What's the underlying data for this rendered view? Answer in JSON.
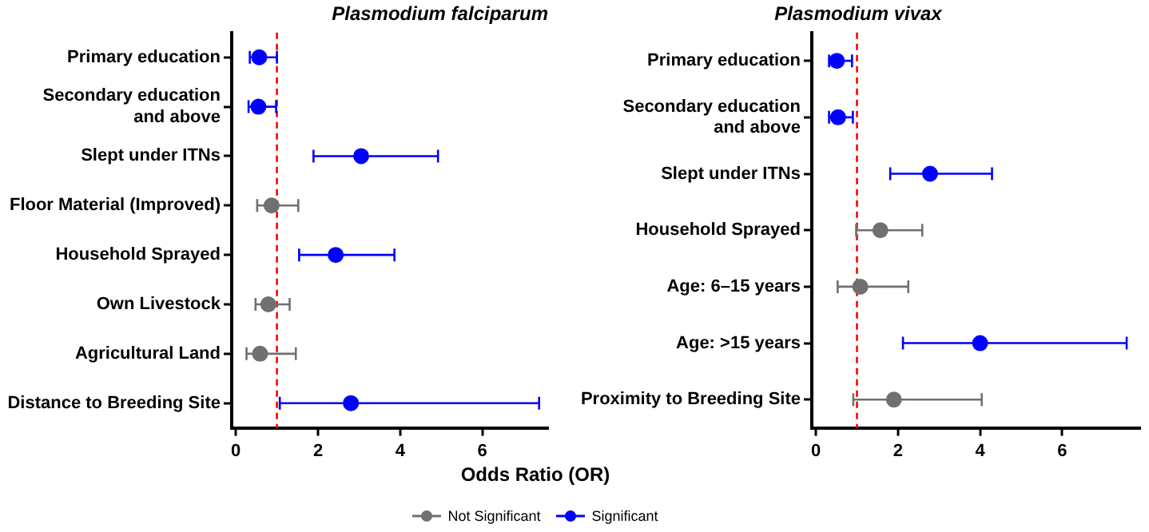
{
  "chart_data": [
    {
      "type": "scatter",
      "orientation": "horizontal",
      "title": "Plasmodium falciparum",
      "xlabel": "Odds Ratio (OR)",
      "legend": "bottom",
      "marker": "circle",
      "categories": [
        "Primary education",
        "Secondary education\nand above",
        "Slept under ITNs",
        "Floor Material (Improved)",
        "Household Sprayed",
        "Own Livestock",
        "Agricultural Land",
        "Distance to Breeding Site"
      ],
      "xlim": [
        -0.1,
        7.6
      ],
      "xticks": [
        0,
        2,
        4,
        6
      ],
      "ref_lines": [
        {
          "axis": "x",
          "value": 1,
          "color": "#ff0000",
          "line_style": "dashed"
        }
      ],
      "series": [
        {
          "name": "Not Significant",
          "color": "#707070",
          "values": [
            null,
            null,
            null,
            0.87,
            null,
            0.79,
            0.59,
            null
          ],
          "errors": [
            null,
            null,
            null,
            [
              0.52,
              1.52
            ],
            null,
            [
              0.48,
              1.31
            ],
            [
              0.26,
              1.46
            ],
            null
          ]
        },
        {
          "name": "Significant",
          "color": "#0000ff",
          "values": [
            0.57,
            0.55,
            3.05,
            null,
            2.43,
            null,
            null,
            2.8
          ],
          "errors": [
            [
              0.34,
              1.0
            ],
            [
              0.31,
              0.98
            ],
            [
              1.89,
              4.92
            ],
            null,
            [
              1.54,
              3.86
            ],
            null,
            null,
            [
              1.07,
              7.38
            ]
          ]
        }
      ]
    },
    {
      "type": "scatter",
      "orientation": "horizontal",
      "title": "Plasmodium vivax",
      "marker": "circle",
      "categories": [
        "Primary education",
        "Secondary education\nand above",
        "Slept under ITNs",
        "Household Sprayed",
        "Age: 6–15 years",
        "Age: >15 years",
        "Proximity to Breeding Site"
      ],
      "xlim": [
        -0.1,
        7.9
      ],
      "xticks": [
        0,
        2,
        4,
        6
      ],
      "ref_lines": [
        {
          "axis": "x",
          "value": 1,
          "color": "#ff0000",
          "line_style": "dashed"
        }
      ],
      "series": [
        {
          "color": "#707070",
          "values": [
            null,
            null,
            null,
            1.57,
            1.08,
            null,
            1.9
          ],
          "errors": [
            null,
            null,
            null,
            [
              0.98,
              2.59
            ],
            [
              0.53,
              2.25
            ],
            null,
            [
              0.91,
              4.04
            ]
          ]
        },
        {
          "color": "#0000ff",
          "values": [
            0.51,
            0.54,
            2.78,
            null,
            null,
            4.0,
            null
          ],
          "errors": [
            [
              0.32,
              0.88
            ],
            [
              0.32,
              0.9
            ],
            [
              1.81,
              4.29
            ],
            null,
            null,
            [
              2.12,
              7.57
            ],
            null
          ]
        }
      ]
    }
  ]
}
